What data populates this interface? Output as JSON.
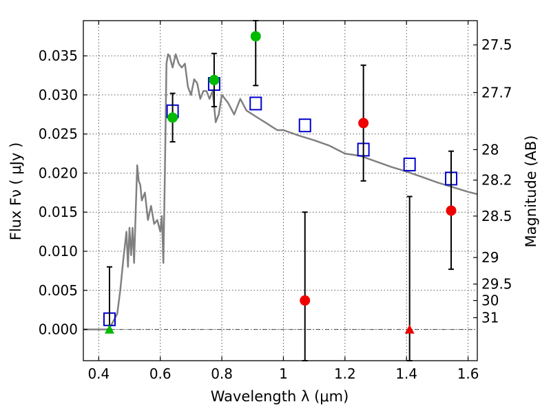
{
  "chart_data": {
    "type": "scatter",
    "xlabel": "Wavelength  λ (μm)",
    "ylabel": "Flux  Fν  ( μJy )",
    "y2label": "Magnitude (AB)",
    "xlim": [
      0.35,
      1.63
    ],
    "ylim": [
      -0.004,
      0.0395
    ],
    "grid": true,
    "x_ticks": [
      0.4,
      0.6,
      0.8,
      1.0,
      1.2,
      1.4,
      1.6
    ],
    "x_tick_labels": [
      "0.4",
      "0.6",
      "0.8",
      "1",
      "1.2",
      "1.4",
      "1.6"
    ],
    "y_ticks": [
      0.0,
      0.005,
      0.01,
      0.015,
      0.02,
      0.025,
      0.03,
      0.035
    ],
    "y_tick_labels": [
      "0.000",
      "0.005",
      "0.010",
      "0.015",
      "0.020",
      "0.025",
      "0.030",
      "0.035"
    ],
    "y2_ticks": [
      {
        "label": "27.5",
        "flux": 0.0364
      },
      {
        "label": "27.7",
        "flux": 0.0303
      },
      {
        "label": "28",
        "flux": 0.023
      },
      {
        "label": "28.2",
        "flux": 0.0191
      },
      {
        "label": "28.5",
        "flux": 0.0145
      },
      {
        "label": "29",
        "flux": 0.0092
      },
      {
        "label": "29.5",
        "flux": 0.0058
      },
      {
        "label": "30",
        "flux": 0.0037
      },
      {
        "label": "31",
        "flux": 0.0015
      }
    ],
    "colors": {
      "model": "#808080",
      "model_points": "#0000cc",
      "optical": "#00bb00",
      "infrared": "#ee0000",
      "errorbar": "#000000"
    },
    "model_spectrum": {
      "x": [
        0.35,
        0.43,
        0.44,
        0.46,
        0.47,
        0.48,
        0.49,
        0.495,
        0.5,
        0.505,
        0.51,
        0.515,
        0.52,
        0.525,
        0.53,
        0.535,
        0.54,
        0.55,
        0.56,
        0.57,
        0.58,
        0.59,
        0.6,
        0.605,
        0.61,
        0.615,
        0.62,
        0.625,
        0.63,
        0.64,
        0.65,
        0.66,
        0.67,
        0.68,
        0.69,
        0.7,
        0.71,
        0.72,
        0.73,
        0.74,
        0.75,
        0.76,
        0.77,
        0.78,
        0.79,
        0.8,
        0.81,
        0.82,
        0.84,
        0.86,
        0.88,
        0.9,
        0.92,
        0.94,
        0.96,
        0.98,
        1.0,
        1.05,
        1.1,
        1.15,
        1.2,
        1.25,
        1.3,
        1.35,
        1.4,
        1.45,
        1.5,
        1.55,
        1.6,
        1.63
      ],
      "y": [
        0.0,
        0.0,
        0.0005,
        0.002,
        0.005,
        0.009,
        0.0125,
        0.008,
        0.013,
        0.0095,
        0.013,
        0.0085,
        0.015,
        0.021,
        0.019,
        0.0185,
        0.0165,
        0.0175,
        0.014,
        0.0158,
        0.0135,
        0.014,
        0.0125,
        0.0145,
        0.0085,
        0.02,
        0.034,
        0.0352,
        0.035,
        0.0335,
        0.0352,
        0.034,
        0.0335,
        0.034,
        0.031,
        0.03,
        0.032,
        0.0315,
        0.0295,
        0.0305,
        0.0305,
        0.0295,
        0.0305,
        0.0265,
        0.0275,
        0.03,
        0.0295,
        0.029,
        0.0275,
        0.0295,
        0.028,
        0.0275,
        0.027,
        0.0265,
        0.026,
        0.0255,
        0.0255,
        0.0248,
        0.0242,
        0.0235,
        0.0225,
        0.0222,
        0.0215,
        0.0208,
        0.0202,
        0.0195,
        0.0188,
        0.0182,
        0.0176,
        0.0173
      ]
    },
    "series": [
      {
        "marker": "open-square",
        "x": [
          0.435,
          0.64,
          0.775,
          0.91,
          1.07,
          1.26,
          1.41,
          1.545
        ],
        "y": [
          0.0013,
          0.0279,
          0.0314,
          0.0289,
          0.0261,
          0.023,
          0.0211,
          0.0193
        ]
      },
      {
        "marker": "filled-circle",
        "color_key": "optical",
        "x": [
          0.64,
          0.775,
          0.91
        ],
        "y": [
          0.0271,
          0.0319,
          0.0375
        ],
        "yerr_low": [
          0.024,
          0.0285,
          0.0312
        ],
        "yerr_high": [
          0.0302,
          0.0353,
          0.0395
        ]
      },
      {
        "marker": "triangle",
        "color_key": "optical",
        "x": [
          0.435
        ],
        "y": [
          0.0
        ],
        "yerr_low": [
          0.0
        ],
        "yerr_high": [
          0.008
        ]
      },
      {
        "marker": "filled-circle",
        "color_key": "infrared",
        "x": [
          1.07,
          1.26,
          1.545
        ],
        "y": [
          0.0037,
          0.0264,
          0.0152
        ],
        "yerr_low": [
          -0.004,
          0.019,
          0.0077
        ],
        "yerr_high": [
          0.015,
          0.0338,
          0.0228
        ]
      },
      {
        "marker": "triangle",
        "color_key": "infrared",
        "x": [
          1.41
        ],
        "y": [
          0.0
        ],
        "yerr_low": [
          -0.004
        ],
        "yerr_high": [
          0.017
        ]
      }
    ]
  }
}
